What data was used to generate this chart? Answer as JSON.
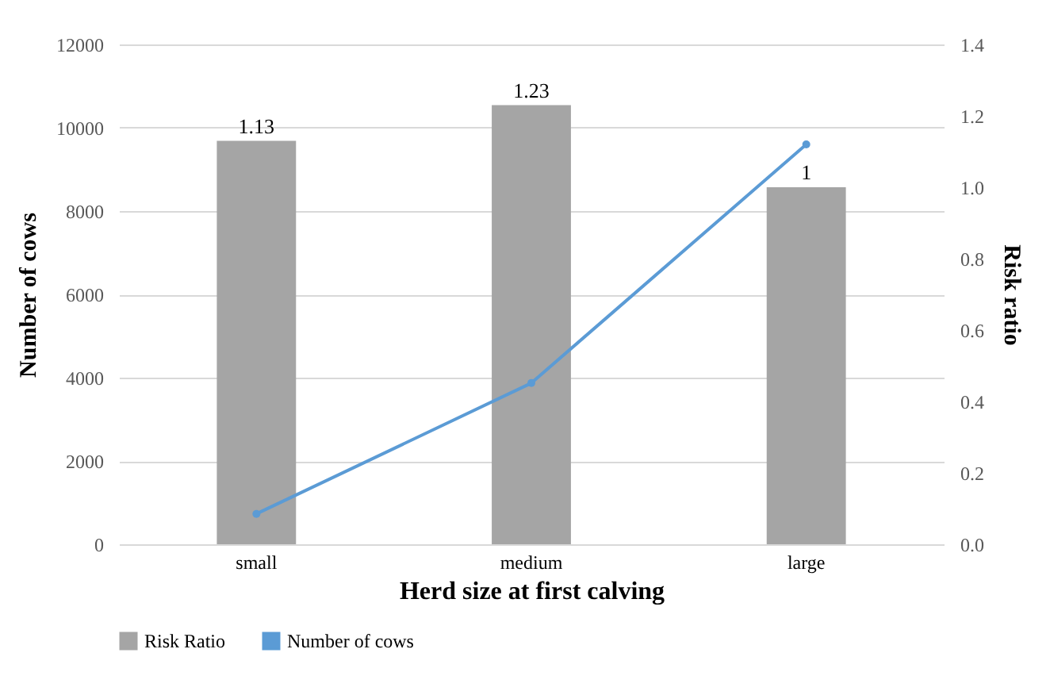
{
  "chart_data": {
    "type": "bar",
    "xlabel": "Herd size at first calving",
    "ylabel": "Number of cows",
    "y2label": "Risk ratio",
    "categories": [
      "small",
      "medium",
      "large"
    ],
    "series": [
      {
        "name": "Risk Ratio",
        "axis": "y2",
        "color": "#a5a5a5",
        "values": [
          1.13,
          1.23,
          1
        ],
        "value_labels": [
          "1.13",
          "1.23",
          "1"
        ]
      },
      {
        "name": "Number of cows",
        "type": "line",
        "color": "#5b9bd5",
        "values": [
          730,
          3870,
          9600
        ]
      }
    ],
    "ylim": [
      0,
      12000
    ],
    "yticks": [
      0,
      2000,
      4000,
      6000,
      8000,
      10000,
      12000
    ],
    "y2lim": [
      0,
      1.4
    ],
    "y2ticks": [
      {
        "value": 0,
        "label": "0.0"
      },
      {
        "value": 0.2,
        "label": "0.2"
      },
      {
        "value": 0.4,
        "label": "0.4"
      },
      {
        "value": 0.6,
        "label": "0.6"
      },
      {
        "value": 0.8,
        "label": "0.8"
      },
      {
        "value": 1,
        "label": "1.0"
      },
      {
        "value": 1.2,
        "label": "1.2"
      },
      {
        "value": 1.4,
        "label": "1.4"
      }
    ],
    "grid": "y",
    "legend": "bottom",
    "marker": "circle",
    "line_style": "solid"
  }
}
